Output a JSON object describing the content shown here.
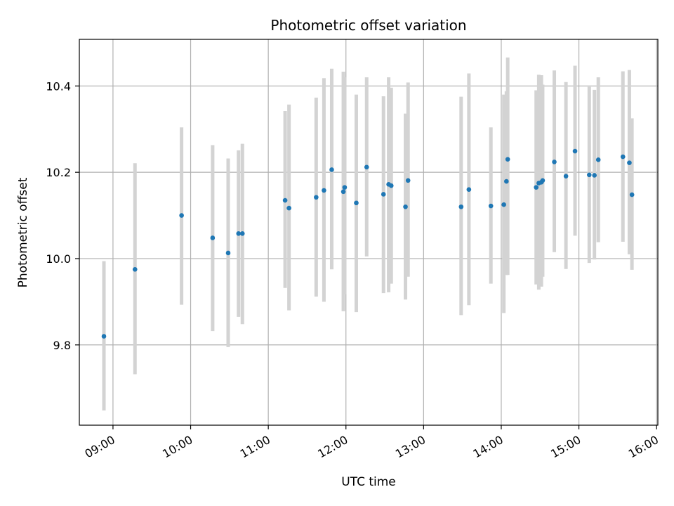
{
  "chart_data": {
    "type": "scatter",
    "title": "Photometric offset variation",
    "xlabel": "UTC time",
    "ylabel": "Photometric offset",
    "x_axis_kind": "time",
    "x_ticks": [
      "09:00",
      "10:00",
      "11:00",
      "12:00",
      "13:00",
      "14:00",
      "15:00",
      "16:00"
    ],
    "y_ticks": [
      "9.8",
      "10.0",
      "10.2",
      "10.4"
    ],
    "xlim": [
      "08:34",
      "16:01"
    ],
    "ylim": [
      9.614,
      10.508
    ],
    "grid": true,
    "colors": {
      "points": "#1f77b4",
      "errorbars": "#d3d3d3",
      "grid": "#b0b0b0",
      "frame": "#000000"
    },
    "series": [
      {
        "x": [
          "08:53",
          "09:17",
          "09:53",
          "10:17",
          "10:29",
          "10:37",
          "10:40",
          "11:13",
          "11:16",
          "11:37",
          "11:43",
          "11:49",
          "11:58",
          "11:59",
          "12:08",
          "12:16",
          "12:29",
          "12:33",
          "12:35",
          "12:46",
          "12:48",
          "13:29",
          "13:35",
          "13:52",
          "14:02",
          "14:04",
          "14:05",
          "14:27",
          "14:29",
          "14:31",
          "14:32",
          "14:41",
          "14:50",
          "14:57",
          "15:08",
          "15:12",
          "15:15",
          "15:34",
          "15:39",
          "15:41"
        ],
        "y": [
          9.82,
          9.975,
          10.1,
          10.048,
          10.013,
          10.058,
          10.058,
          10.135,
          10.117,
          10.142,
          10.158,
          10.206,
          10.155,
          10.165,
          10.129,
          10.212,
          10.149,
          10.172,
          10.169,
          10.12,
          10.181,
          10.12,
          10.16,
          10.122,
          10.125,
          10.179,
          10.23,
          10.165,
          10.175,
          10.177,
          10.181,
          10.224,
          10.191,
          10.249,
          10.194,
          10.193,
          10.229,
          10.236,
          10.222,
          10.148
        ],
        "y_lower": [
          9.648,
          9.732,
          9.893,
          9.832,
          9.795,
          9.865,
          9.848,
          9.932,
          9.88,
          9.912,
          9.9,
          9.975,
          9.878,
          9.918,
          9.876,
          10.005,
          9.92,
          9.922,
          9.942,
          9.905,
          9.958,
          9.869,
          9.892,
          9.942,
          9.874,
          9.962,
          9.962,
          9.94,
          9.928,
          9.935,
          9.958,
          10.015,
          9.976,
          10.053,
          9.99,
          9.998,
          10.038,
          10.039,
          10.01,
          9.974
        ],
        "y_upper": [
          9.994,
          10.221,
          10.304,
          10.263,
          10.232,
          10.251,
          10.266,
          10.342,
          10.357,
          10.373,
          10.418,
          10.44,
          10.433,
          10.42,
          10.38,
          10.42,
          10.376,
          10.42,
          10.396,
          10.336,
          10.408,
          10.375,
          10.429,
          10.304,
          10.38,
          10.388,
          10.466,
          10.39,
          10.426,
          10.425,
          10.403,
          10.436,
          10.409,
          10.447,
          10.398,
          10.391,
          10.42,
          10.434,
          10.437,
          10.325
        ]
      }
    ]
  }
}
